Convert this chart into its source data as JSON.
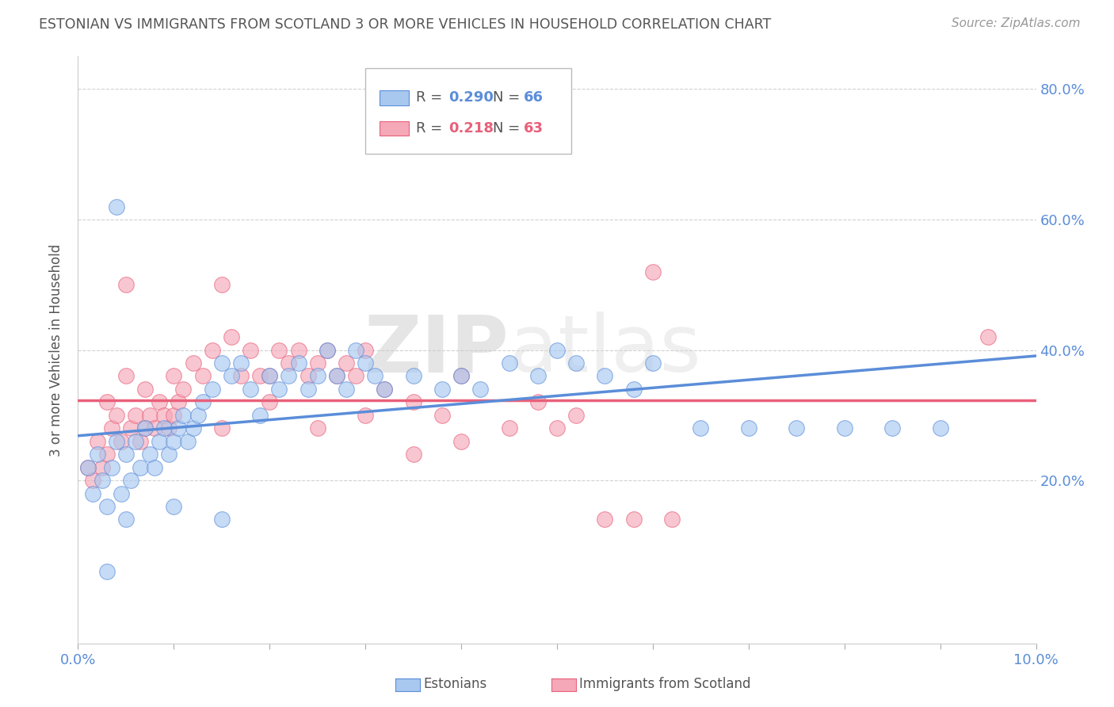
{
  "title": "ESTONIAN VS IMMIGRANTS FROM SCOTLAND 3 OR MORE VEHICLES IN HOUSEHOLD CORRELATION CHART",
  "source": "Source: ZipAtlas.com",
  "ylabel": "3 or more Vehicles in Household",
  "xlim": [
    0.0,
    10.0
  ],
  "ylim": [
    -5.0,
    85.0
  ],
  "yticks_right": [
    20.0,
    40.0,
    60.0,
    80.0
  ],
  "ytick_labels_right": [
    "20.0%",
    "40.0%",
    "60.0%",
    "80.0%"
  ],
  "color_estonian": "#a8c8f0",
  "color_scottish": "#f5a8b8",
  "color_estonian_line": "#5b8dd9",
  "color_scottish_line": "#e8607a",
  "watermark_zip": "ZIP",
  "watermark_atlas": "atlas",
  "estonians_x": [
    0.1,
    0.15,
    0.2,
    0.25,
    0.3,
    0.35,
    0.4,
    0.45,
    0.5,
    0.55,
    0.6,
    0.65,
    0.7,
    0.75,
    0.8,
    0.85,
    0.9,
    0.95,
    1.0,
    1.05,
    1.1,
    1.15,
    1.2,
    1.25,
    1.3,
    1.4,
    1.5,
    1.6,
    1.7,
    1.8,
    1.9,
    2.0,
    2.1,
    2.2,
    2.3,
    2.4,
    2.5,
    2.6,
    2.7,
    2.8,
    2.9,
    3.0,
    3.1,
    3.2,
    3.5,
    3.8,
    4.0,
    4.2,
    4.5,
    4.8,
    5.0,
    5.2,
    5.5,
    5.8,
    6.0,
    6.5,
    7.0,
    7.5,
    8.0,
    8.5,
    9.0,
    0.3,
    0.4,
    0.5,
    1.0,
    1.5
  ],
  "estonians_y": [
    22.0,
    18.0,
    24.0,
    20.0,
    16.0,
    22.0,
    26.0,
    18.0,
    24.0,
    20.0,
    26.0,
    22.0,
    28.0,
    24.0,
    22.0,
    26.0,
    28.0,
    24.0,
    26.0,
    28.0,
    30.0,
    26.0,
    28.0,
    30.0,
    32.0,
    34.0,
    38.0,
    36.0,
    38.0,
    34.0,
    30.0,
    36.0,
    34.0,
    36.0,
    38.0,
    34.0,
    36.0,
    40.0,
    36.0,
    34.0,
    40.0,
    38.0,
    36.0,
    34.0,
    36.0,
    34.0,
    36.0,
    34.0,
    38.0,
    36.0,
    40.0,
    38.0,
    36.0,
    34.0,
    38.0,
    28.0,
    28.0,
    28.0,
    28.0,
    28.0,
    28.0,
    6.0,
    62.0,
    14.0,
    16.0,
    14.0
  ],
  "scottish_x": [
    0.1,
    0.15,
    0.2,
    0.25,
    0.3,
    0.35,
    0.4,
    0.45,
    0.5,
    0.55,
    0.6,
    0.65,
    0.7,
    0.75,
    0.8,
    0.85,
    0.9,
    0.95,
    1.0,
    1.05,
    1.1,
    1.2,
    1.3,
    1.4,
    1.5,
    1.6,
    1.7,
    1.8,
    1.9,
    2.0,
    2.1,
    2.2,
    2.3,
    2.4,
    2.5,
    2.6,
    2.7,
    2.8,
    2.9,
    3.0,
    3.2,
    3.5,
    3.8,
    4.0,
    4.5,
    4.8,
    5.0,
    5.2,
    5.5,
    5.8,
    6.0,
    6.2,
    0.3,
    0.5,
    0.7,
    1.0,
    1.5,
    2.0,
    2.5,
    3.0,
    3.5,
    4.0,
    9.5
  ],
  "scottish_y": [
    22.0,
    20.0,
    26.0,
    22.0,
    24.0,
    28.0,
    30.0,
    26.0,
    50.0,
    28.0,
    30.0,
    26.0,
    28.0,
    30.0,
    28.0,
    32.0,
    30.0,
    28.0,
    30.0,
    32.0,
    34.0,
    38.0,
    36.0,
    40.0,
    50.0,
    42.0,
    36.0,
    40.0,
    36.0,
    36.0,
    40.0,
    38.0,
    40.0,
    36.0,
    38.0,
    40.0,
    36.0,
    38.0,
    36.0,
    40.0,
    34.0,
    32.0,
    30.0,
    36.0,
    28.0,
    32.0,
    28.0,
    30.0,
    14.0,
    14.0,
    52.0,
    14.0,
    32.0,
    36.0,
    34.0,
    36.0,
    28.0,
    32.0,
    28.0,
    30.0,
    24.0,
    26.0,
    42.0
  ]
}
